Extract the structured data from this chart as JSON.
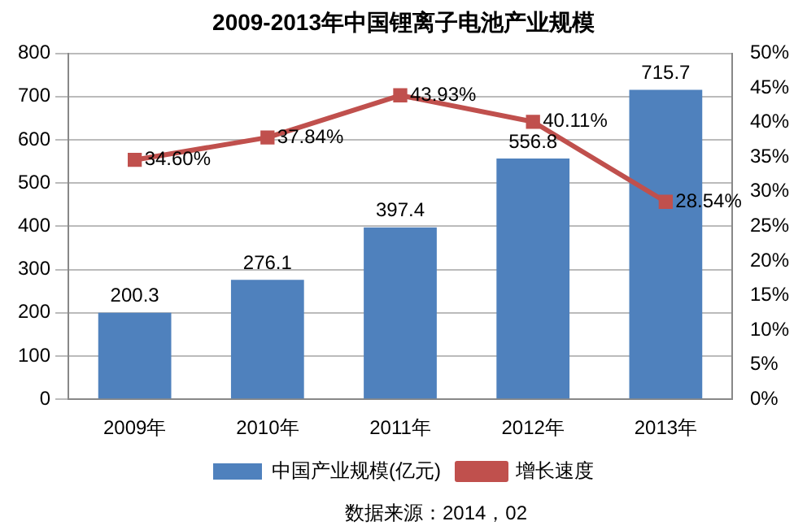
{
  "chart_data": {
    "type": "bar",
    "title": "2009-2013年中国锂离子电池产业规模",
    "categories": [
      "2009年",
      "2010年",
      "2011年",
      "2012年",
      "2013年"
    ],
    "series": [
      {
        "name": "中国产业规模(亿元)",
        "color": "#4f81bd",
        "values": [
          200.3,
          276.1,
          397.4,
          556.8,
          715.7
        ],
        "value_labels": [
          "200.3",
          "276.1",
          "397.4",
          "556.8",
          "715.7"
        ]
      },
      {
        "name": "增长速度",
        "type": "line",
        "axis": "y2",
        "color": "#c0504d",
        "marker": "square",
        "values": [
          34.6,
          37.84,
          43.93,
          40.11,
          28.54
        ],
        "value_labels": [
          "34.60%",
          "37.84%",
          "43.93%",
          "40.11%",
          "28.54%"
        ]
      }
    ],
    "ylim": [
      0,
      800
    ],
    "yticks": [
      0,
      100,
      200,
      300,
      400,
      500,
      600,
      700,
      800
    ],
    "y2lim": [
      0,
      50
    ],
    "y2ticks": [
      {
        "value": 0,
        "label": "0%"
      },
      {
        "value": 5,
        "label": "5%"
      },
      {
        "value": 10,
        "label": "10%"
      },
      {
        "value": 15,
        "label": "15%"
      },
      {
        "value": 20,
        "label": "20%"
      },
      {
        "value": 25,
        "label": "25%"
      },
      {
        "value": 30,
        "label": "30%"
      },
      {
        "value": 35,
        "label": "35%"
      },
      {
        "value": 40,
        "label": "40%"
      },
      {
        "value": 45,
        "label": "45%"
      },
      {
        "value": 50,
        "label": "50%"
      }
    ],
    "grid": "y",
    "legend": "bottom",
    "annotations": [
      "数据来源：2014，02"
    ]
  }
}
